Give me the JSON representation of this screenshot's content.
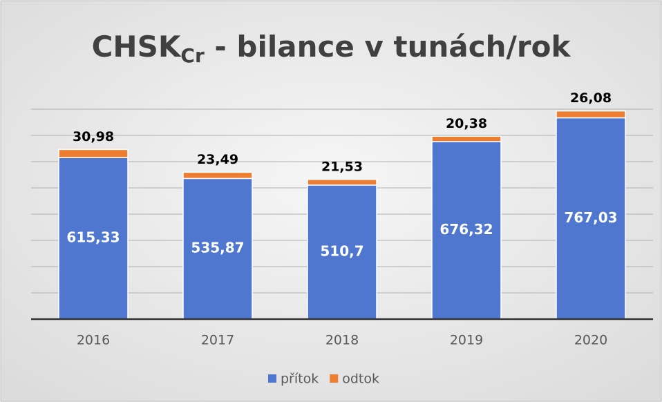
{
  "chart_data": {
    "type": "stacked_bar",
    "title": {
      "text": "CHSK",
      "subscript": "Cr",
      "rest": " - bilance v tunách/rok"
    },
    "categories": [
      "2016",
      "2017",
      "2018",
      "2019",
      "2020"
    ],
    "series": [
      {
        "name": "přítok",
        "color": "#4f77d0",
        "values": [
          615.33,
          535.87,
          510.7,
          676.32,
          767.03
        ],
        "value_labels": [
          "615,33",
          "535,87",
          "510,7",
          "676,32",
          "767,03"
        ]
      },
      {
        "name": "odtok",
        "color": "#ed7d31",
        "values": [
          30.98,
          23.49,
          21.53,
          20.38,
          26.08
        ],
        "value_labels": [
          "30,98",
          "23,49",
          "21,53",
          "20,38",
          "26,08"
        ]
      }
    ],
    "ylim": [
      0,
      800
    ],
    "yticks": [
      0,
      100,
      200,
      300,
      400,
      500,
      600,
      700,
      800
    ],
    "grid": true,
    "legend": "bottom"
  }
}
